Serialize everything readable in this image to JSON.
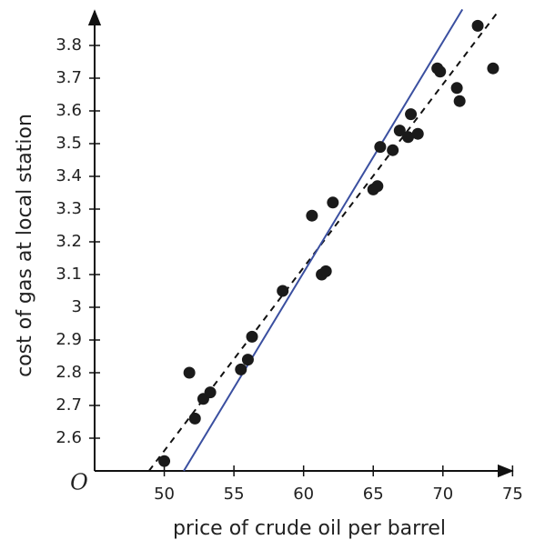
{
  "chart_data": {
    "type": "scatter",
    "x_label": "price of crude oil per barrel",
    "y_label": "cost of gas at local station",
    "origin_label": "O",
    "xlim": [
      45,
      75.5
    ],
    "ylim": [
      2.5,
      3.9
    ],
    "xticks": [
      50,
      55,
      60,
      65,
      70,
      75
    ],
    "yticks": [
      2.6,
      2.7,
      2.8,
      2.9,
      3,
      3.1,
      3.2,
      3.3,
      3.4,
      3.5,
      3.6,
      3.7,
      3.8
    ],
    "series": [
      {
        "color": "#1a1a1a",
        "x": [
          50,
          51.8,
          52.2,
          52.8,
          53.3,
          55.5,
          56,
          56.3,
          58.5,
          60.6,
          61.3,
          61.6,
          62.1,
          65,
          65.3,
          65.5,
          66.4,
          66.9,
          67.5,
          67.7,
          68.2,
          69.6,
          69.8,
          71,
          71.2,
          72.5,
          73.6
        ],
        "values": [
          2.53,
          2.8,
          2.66,
          2.72,
          2.74,
          2.81,
          2.84,
          2.91,
          3.05,
          3.28,
          3.1,
          3.11,
          3.32,
          3.36,
          3.37,
          3.49,
          3.48,
          3.54,
          3.52,
          3.59,
          3.53,
          3.73,
          3.72,
          3.67,
          3.63,
          3.86,
          3.73
        ]
      }
    ],
    "lines": [
      {
        "style": "dashed",
        "color": "#111111",
        "x": [
          48.9,
          73.9
        ],
        "values": [
          2.5,
          3.9
        ]
      },
      {
        "style": "solid",
        "color": "#3a4fa0",
        "x": [
          51.4,
          71.4
        ],
        "values": [
          2.5,
          3.91
        ]
      }
    ]
  }
}
